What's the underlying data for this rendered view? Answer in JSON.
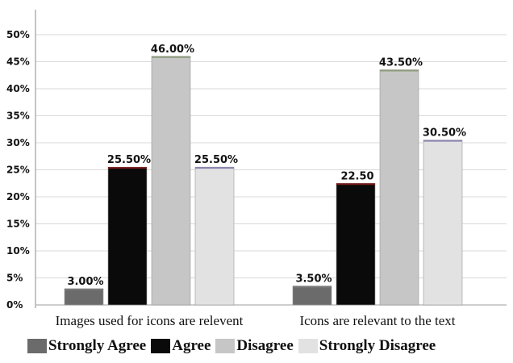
{
  "chart_data": {
    "type": "bar",
    "categories": [
      "Images used for icons are relevent",
      "Icons are relevant to the text"
    ],
    "series": [
      {
        "name": "Strongly Agree",
        "values": [
          3.0,
          3.5
        ],
        "labels": [
          "3.00%",
          "3.50%"
        ],
        "color": "#6b6b6b"
      },
      {
        "name": "Agree",
        "values": [
          25.5,
          22.5
        ],
        "labels": [
          "25.50%",
          "22.50"
        ],
        "color": "#0a0a0a"
      },
      {
        "name": "Disagree",
        "values": [
          46.0,
          43.5
        ],
        "labels": [
          "46.00%",
          "43.50%"
        ],
        "color": "#c6c6c6"
      },
      {
        "name": "Strongly Disagree",
        "values": [
          25.5,
          30.5
        ],
        "labels": [
          "25.50%",
          "30.50%"
        ],
        "color": "#e2e2e2"
      }
    ],
    "y_ticks": [
      "0%",
      "5%",
      "10%",
      "15%",
      "20%",
      "25%",
      "30%",
      "35%",
      "40%",
      "45%",
      "50%"
    ],
    "ylim": [
      0,
      50
    ],
    "grid": true,
    "legend": "bottom"
  }
}
